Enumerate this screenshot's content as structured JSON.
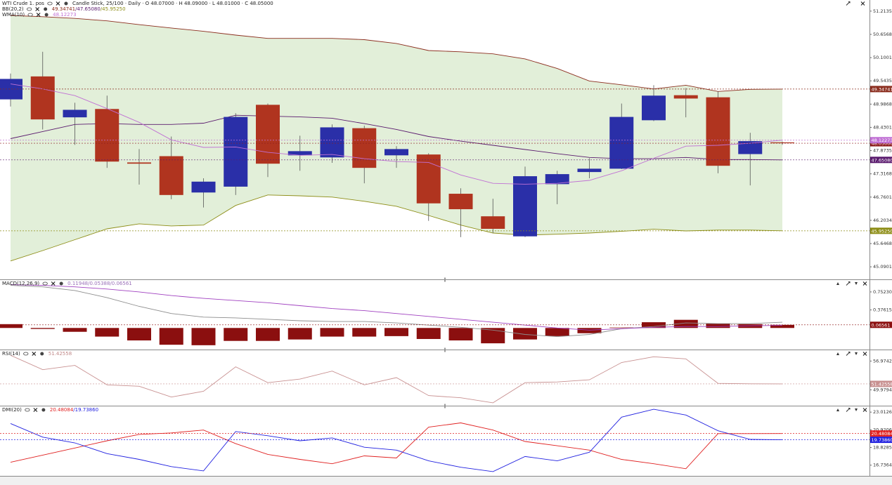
{
  "chart_data": [
    {
      "type": "candlestick",
      "title": "WTI Crude 1. pos",
      "subtitle": "Candle Stick, 25/100 · Daily · O 48.07000 · H 48.09000 · L 48.01000 · C 48.05000",
      "open": [
        49.1,
        49.65,
        48.67,
        48.87,
        47.59,
        47.74,
        46.87,
        47.01,
        48.97,
        47.76,
        47.71,
        48.41,
        47.76,
        47.78,
        46.84,
        46.3,
        45.82,
        47.07,
        47.36,
        47.44,
        48.6,
        49.2,
        49.15,
        47.79,
        48.07
      ],
      "high": [
        49.72,
        50.24,
        49.02,
        49.19,
        47.91,
        48.21,
        47.21,
        48.77,
        49.0,
        48.23,
        48.5,
        48.47,
        47.98,
        47.81,
        46.97,
        46.72,
        47.49,
        47.39,
        47.69,
        49.0,
        49.44,
        49.37,
        49.29,
        48.3,
        48.09
      ],
      "low": [
        48.93,
        48.38,
        48.01,
        47.46,
        47.06,
        46.71,
        46.51,
        46.81,
        47.24,
        47.39,
        47.58,
        47.09,
        47.46,
        46.19,
        45.8,
        45.9,
        45.8,
        46.59,
        47.21,
        47.43,
        48.58,
        48.67,
        47.33,
        47.04,
        48.01
      ],
      "close": [
        49.59,
        48.62,
        48.85,
        47.61,
        47.56,
        46.81,
        47.13,
        48.68,
        47.56,
        47.86,
        48.43,
        47.46,
        47.91,
        46.61,
        46.47,
        46.0,
        47.26,
        47.31,
        47.44,
        48.68,
        49.19,
        49.12,
        47.51,
        48.1,
        48.05
      ],
      "up_color": "#2a2fa8",
      "down_color": "#b0341f",
      "close_tag": {
        "value": 48.05,
        "label": "48.05000",
        "color": "#8b1a1a"
      },
      "ylim": [
        44.79,
        51.48
      ],
      "yticks": [
        51.21351,
        50.65684,
        50.10017,
        {
          "value": 49.5435,
          "label": "49.54350"
        },
        48.98683,
        48.43017,
        {
          "value": 47.8735,
          "label": "47.87350"
        },
        47.31683,
        46.76016,
        46.20349,
        45.64682,
        45.09015
      ],
      "bands": {
        "name": "BB(20,2)",
        "fill": "#e2efd9",
        "readout": [
          {
            "text": "49.34741",
            "color": "#8b2d1e"
          },
          {
            "text": "/47.65080",
            "color": "#5a1a6e"
          },
          {
            "text": "/45.95250",
            "color": "#8d8d16"
          }
        ],
        "upper": {
          "color": "#8b2d1e",
          "values": [
            51.11,
            51.08,
            51.04,
            50.98,
            50.89,
            50.81,
            50.73,
            50.64,
            50.56,
            50.56,
            50.56,
            50.53,
            50.44,
            50.27,
            50.24,
            50.19,
            50.07,
            49.84,
            49.54,
            49.45,
            49.35,
            49.44,
            49.29,
            49.34,
            49.34741
          ],
          "tag": {
            "value": 49.34741,
            "label": "49.34741"
          }
        },
        "middle": {
          "color": "#5a1a6e",
          "values": [
            48.16,
            48.33,
            48.5,
            48.52,
            48.5,
            48.5,
            48.53,
            48.72,
            48.7,
            48.68,
            48.65,
            48.52,
            48.38,
            48.21,
            48.1,
            48.0,
            47.9,
            47.8,
            47.71,
            47.68,
            47.68,
            47.71,
            47.66,
            47.66,
            47.6508
          ],
          "tag": {
            "value": 47.6508,
            "label": "47.65080"
          }
        },
        "lower": {
          "color": "#8d8d16",
          "values": [
            45.23,
            45.48,
            45.74,
            46.0,
            46.12,
            46.07,
            46.09,
            46.56,
            46.81,
            46.79,
            46.76,
            46.66,
            46.54,
            46.32,
            46.09,
            45.9,
            45.85,
            45.87,
            45.9,
            45.94,
            45.99,
            45.95,
            45.97,
            45.97,
            45.9525
          ],
          "tag": {
            "value": 45.9525,
            "label": "45.95250"
          }
        }
      },
      "series": [
        {
          "name": "WMA(10)",
          "color": "#c070d4",
          "readout": [
            {
              "text": "48.12273",
              "color": "#c070d4"
            }
          ],
          "values": [
            49.47,
            49.35,
            49.19,
            48.88,
            48.55,
            48.13,
            47.95,
            47.96,
            47.83,
            47.76,
            47.78,
            47.68,
            47.61,
            47.59,
            47.29,
            47.09,
            47.07,
            47.09,
            47.16,
            47.39,
            47.69,
            47.98,
            48.0,
            48.05,
            48.12273
          ],
          "tag": {
            "value": 48.12273,
            "label": "48.12273"
          }
        }
      ]
    },
    {
      "type": "macd",
      "name": "MACD(12,26,9)",
      "readout": [
        {
          "text": "0.11948/0.05388/0.06561",
          "color": "#9a70b8"
        }
      ],
      "ylim": [
        -0.45,
        1.0
      ],
      "yticks": [
        {
          "value": 0.7523,
          "label": "0.75230"
        },
        0.37615
      ],
      "histogram": {
        "color": "#8b0f0f",
        "values": [
          0.08,
          -0.02,
          -0.08,
          -0.18,
          -0.26,
          -0.35,
          -0.36,
          -0.27,
          -0.27,
          -0.24,
          -0.18,
          -0.18,
          -0.17,
          -0.23,
          -0.26,
          -0.32,
          -0.24,
          -0.17,
          -0.11,
          0.01,
          0.12,
          0.17,
          0.09,
          0.08,
          0.06561
        ],
        "tag": {
          "value": 0.06561,
          "label": "0.06561"
        }
      },
      "series": [
        {
          "color": "#8c8c8c",
          "values": [
            0.888,
            0.858,
            0.782,
            0.632,
            0.451,
            0.301,
            0.226,
            0.211,
            0.181,
            0.15,
            0.135,
            0.135,
            0.105,
            0.06,
            0.015,
            -0.045,
            -0.135,
            -0.181,
            -0.135,
            -0.015,
            0.03,
            0.105,
            0.09,
            0.09,
            0.11948
          ]
        },
        {
          "color": "#a040c0",
          "values": [
            0.903,
            0.888,
            0.858,
            0.813,
            0.752,
            0.677,
            0.617,
            0.572,
            0.527,
            0.466,
            0.406,
            0.361,
            0.301,
            0.241,
            0.181,
            0.12,
            0.06,
            0,
            -0.045,
            -0.015,
            0.015,
            0.03,
            0.03,
            0.045,
            0.05388
          ]
        }
      ]
    },
    {
      "type": "line",
      "name": "RSI(14)",
      "readout": [
        {
          "text": "51.42558",
          "color": "#c08888"
        }
      ],
      "ylim": [
        46.13,
        59.6
      ],
      "yticks": [
        56.97428,
        49.97942
      ],
      "series": [
        {
          "color": "#c89090",
          "values": [
            58.37,
            54.88,
            55.92,
            51.2,
            50.85,
            48.23,
            49.63,
            55.58,
            51.73,
            52.6,
            54.53,
            51.2,
            52.95,
            48.58,
            48.06,
            46.83,
            51.73,
            51.9,
            52.42,
            56.62,
            58.02,
            57.5,
            51.55,
            51.45,
            51.42558
          ],
          "tag": {
            "value": 51.42558,
            "label": "51.42558"
          }
        }
      ]
    },
    {
      "type": "line",
      "name": "DMI(20)",
      "readout": [
        {
          "text": "20.48084",
          "color": "#e02020"
        },
        {
          "text": "/19.73860",
          "color": "#2020e0"
        }
      ],
      "ylim": [
        15.47,
        23.69
      ],
      "yticks": [
        23.01266,
        20.92063,
        18.82854,
        16.73648
      ],
      "series": [
        {
          "color": "#e02020",
          "values": [
            17.08,
            17.93,
            18.77,
            19.62,
            20.38,
            20.55,
            20.89,
            19.28,
            18.01,
            17.42,
            16.91,
            17.84,
            17.59,
            21.23,
            21.74,
            20.89,
            19.54,
            19.03,
            18.52,
            17.42,
            16.91,
            16.32,
            20.47,
            20.47,
            20.48084
          ],
          "tag": {
            "value": 20.48084,
            "label": "20.48084"
          }
        },
        {
          "color": "#2020e0",
          "values": [
            21.66,
            20.05,
            19.37,
            18.1,
            17.42,
            16.57,
            16.06,
            20.72,
            20.22,
            19.62,
            19.96,
            18.86,
            18.52,
            17.25,
            16.49,
            15.98,
            17.76,
            17.25,
            18.27,
            22.42,
            23.35,
            22.67,
            20.81,
            19.79,
            19.7386
          ],
          "tag": {
            "value": 19.7386,
            "label": "19.73860"
          }
        }
      ]
    }
  ]
}
